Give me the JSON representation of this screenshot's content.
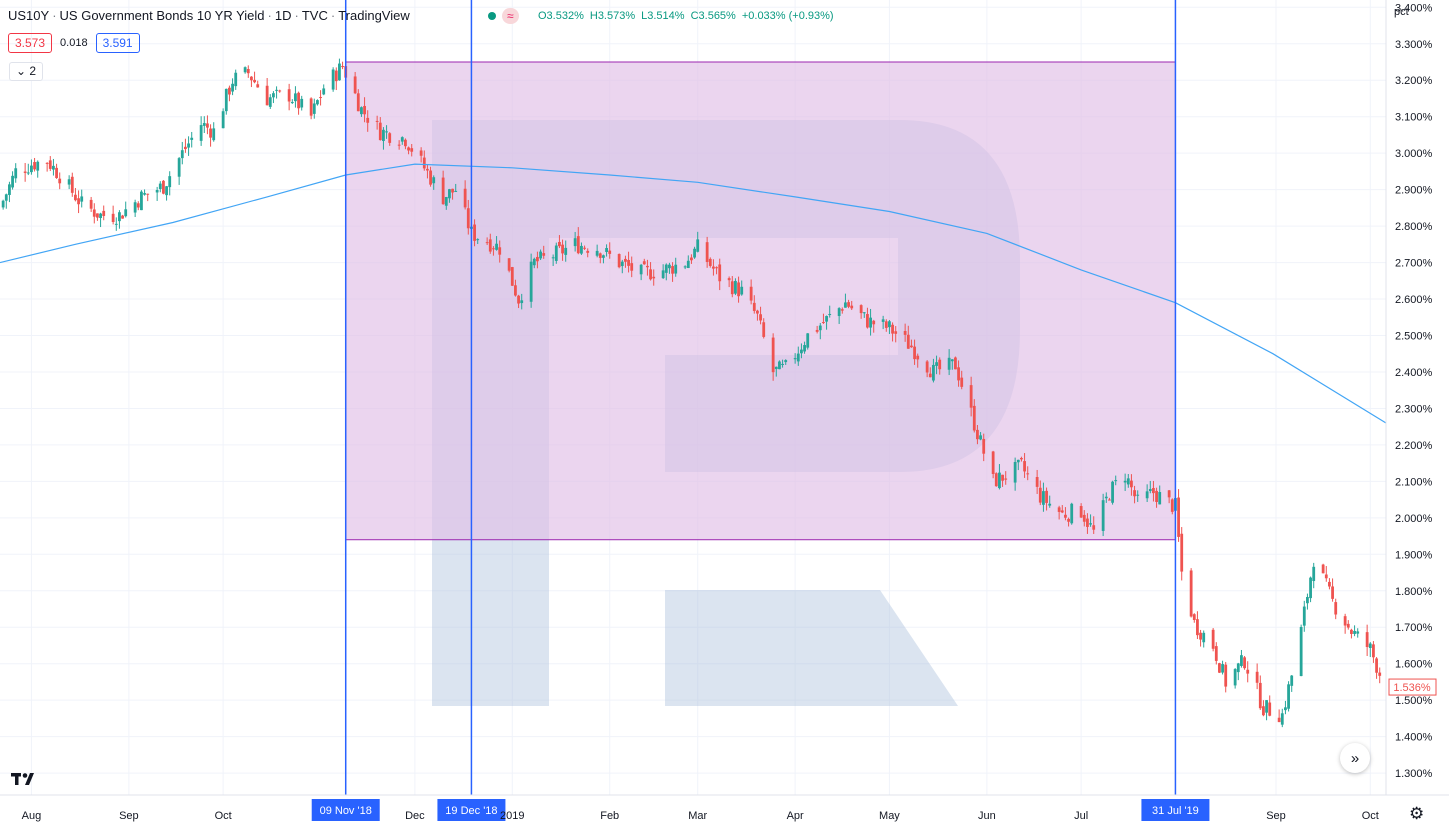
{
  "header": {
    "symbol": "US10Y",
    "name": "US Government Bonds 10 YR Yield",
    "interval": "1D",
    "exchange": "TVC",
    "source": "TradingView",
    "status_pill": "≈",
    "ohlc": {
      "open": "O3.532%",
      "high": "H3.573%",
      "low": "L3.514%",
      "close": "C3.565%",
      "change": "+0.033% (+0.93%)"
    },
    "sell_price": "3.573",
    "spread": "0.018",
    "buy_price": "3.591",
    "indicator_toggle": "⌄ 2"
  },
  "axis_unit": "pct",
  "colors": {
    "up": "#26a69a",
    "down": "#ef5350",
    "ma": "#42a5f5",
    "range_fill": "#e1bee7",
    "range_border": "#9c27b0",
    "vline": "#2962ff",
    "watermark": "#b0c4de"
  },
  "chart_data": {
    "type": "candlestick",
    "y_ticks": [
      "1.300%",
      "1.400%",
      "1.500%",
      "1.600%",
      "1.700%",
      "1.800%",
      "1.900%",
      "2.000%",
      "2.100%",
      "2.200%",
      "2.300%",
      "2.400%",
      "2.500%",
      "2.600%",
      "2.700%",
      "2.800%",
      "2.900%",
      "3.000%",
      "3.100%",
      "3.200%",
      "3.300%",
      "3.400%"
    ],
    "ylim": [
      1.24,
      3.42
    ],
    "x_start": "2018-07-22",
    "x_end": "2019-10-06",
    "x_ticks": [
      {
        "label": "Aug",
        "date": "2018-08-01"
      },
      {
        "label": "Sep",
        "date": "2018-09-01"
      },
      {
        "label": "Oct",
        "date": "2018-10-01"
      },
      {
        "label": "Dec",
        "date": "2018-12-01"
      },
      {
        "label": "2019",
        "date": "2019-01-01"
      },
      {
        "label": "Feb",
        "date": "2019-02-01"
      },
      {
        "label": "Mar",
        "date": "2019-03-01"
      },
      {
        "label": "Apr",
        "date": "2019-04-01"
      },
      {
        "label": "May",
        "date": "2019-05-01"
      },
      {
        "label": "Jun",
        "date": "2019-06-01"
      },
      {
        "label": "Jul",
        "date": "2019-07-01"
      },
      {
        "label": "Sep",
        "date": "2019-09-01"
      },
      {
        "label": "Oct",
        "date": "2019-10-01"
      }
    ],
    "close_path": [
      [
        "2018-07-22",
        2.85
      ],
      [
        "2018-07-27",
        2.95
      ],
      [
        "2018-08-01",
        2.97
      ],
      [
        "2018-08-06",
        2.98
      ],
      [
        "2018-08-10",
        2.94
      ],
      [
        "2018-08-17",
        2.86
      ],
      [
        "2018-08-23",
        2.83
      ],
      [
        "2018-08-29",
        2.83
      ],
      [
        "2018-09-05",
        2.88
      ],
      [
        "2018-09-12",
        2.91
      ],
      [
        "2018-09-18",
        3.0
      ],
      [
        "2018-09-24",
        3.08
      ],
      [
        "2018-09-28",
        3.06
      ],
      [
        "2018-10-04",
        3.2
      ],
      [
        "2018-10-09",
        3.22
      ],
      [
        "2018-10-15",
        3.15
      ],
      [
        "2018-10-22",
        3.16
      ],
      [
        "2018-10-29",
        3.1
      ],
      [
        "2018-11-02",
        3.18
      ],
      [
        "2018-11-08",
        3.24
      ],
      [
        "2018-11-14",
        3.12
      ],
      [
        "2018-11-20",
        3.06
      ],
      [
        "2018-11-28",
        3.04
      ],
      [
        "2018-12-04",
        2.96
      ],
      [
        "2018-12-10",
        2.88
      ],
      [
        "2018-12-14",
        2.9
      ],
      [
        "2018-12-19",
        2.78
      ],
      [
        "2018-12-24",
        2.76
      ],
      [
        "2018-12-28",
        2.74
      ],
      [
        "2019-01-03",
        2.6
      ],
      [
        "2019-01-08",
        2.7
      ],
      [
        "2019-01-14",
        2.72
      ],
      [
        "2019-01-21",
        2.75
      ],
      [
        "2019-01-28",
        2.74
      ],
      [
        "2019-02-04",
        2.7
      ],
      [
        "2019-02-11",
        2.67
      ],
      [
        "2019-02-18",
        2.68
      ],
      [
        "2019-02-25",
        2.7
      ],
      [
        "2019-03-01",
        2.74
      ],
      [
        "2019-03-08",
        2.66
      ],
      [
        "2019-03-15",
        2.62
      ],
      [
        "2019-03-20",
        2.55
      ],
      [
        "2019-03-25",
        2.4
      ],
      [
        "2019-03-29",
        2.41
      ],
      [
        "2019-04-05",
        2.5
      ],
      [
        "2019-04-12",
        2.55
      ],
      [
        "2019-04-17",
        2.59
      ],
      [
        "2019-04-24",
        2.54
      ],
      [
        "2019-05-01",
        2.52
      ],
      [
        "2019-05-08",
        2.47
      ],
      [
        "2019-05-15",
        2.4
      ],
      [
        "2019-05-22",
        2.42
      ],
      [
        "2019-05-28",
        2.26
      ],
      [
        "2019-06-03",
        2.1
      ],
      [
        "2019-06-08",
        2.12
      ],
      [
        "2019-06-12",
        2.14
      ],
      [
        "2019-06-18",
        2.06
      ],
      [
        "2019-06-25",
        2.01
      ],
      [
        "2019-07-01",
        2.02
      ],
      [
        "2019-07-05",
        1.96
      ],
      [
        "2019-07-10",
        2.07
      ],
      [
        "2019-07-15",
        2.12
      ],
      [
        "2019-07-19",
        2.04
      ],
      [
        "2019-07-24",
        2.07
      ],
      [
        "2019-07-31",
        2.03
      ],
      [
        "2019-08-02",
        1.85
      ],
      [
        "2019-08-06",
        1.71
      ],
      [
        "2019-08-12",
        1.65
      ],
      [
        "2019-08-16",
        1.55
      ],
      [
        "2019-08-22",
        1.61
      ],
      [
        "2019-08-28",
        1.48
      ],
      [
        "2019-09-03",
        1.46
      ],
      [
        "2019-09-08",
        1.64
      ],
      [
        "2019-09-13",
        1.89
      ],
      [
        "2019-09-19",
        1.77
      ],
      [
        "2019-09-25",
        1.69
      ],
      [
        "2019-10-01",
        1.64
      ],
      [
        "2019-10-06",
        1.53
      ]
    ],
    "moving_average": [
      [
        "2018-07-22",
        2.7
      ],
      [
        "2018-08-15",
        2.75
      ],
      [
        "2018-09-15",
        2.81
      ],
      [
        "2018-10-15",
        2.88
      ],
      [
        "2018-11-09",
        2.94
      ],
      [
        "2018-12-01",
        2.97
      ],
      [
        "2019-01-01",
        2.96
      ],
      [
        "2019-02-01",
        2.94
      ],
      [
        "2019-03-01",
        2.92
      ],
      [
        "2019-04-01",
        2.88
      ],
      [
        "2019-05-01",
        2.84
      ],
      [
        "2019-06-01",
        2.78
      ],
      [
        "2019-07-01",
        2.68
      ],
      [
        "2019-07-31",
        2.59
      ],
      [
        "2019-08-31",
        2.45
      ],
      [
        "2019-10-06",
        2.26
      ]
    ],
    "last_price": 1.536,
    "last_price_label": "1.536%",
    "range_box": {
      "from": "2018-11-09",
      "to": "2019-07-31",
      "low": 1.94,
      "high": 3.25
    },
    "vertical_lines": [
      {
        "date": "2018-11-09",
        "label": "09 Nov '18"
      },
      {
        "date": "2018-12-19",
        "label": "19 Dec '18"
      },
      {
        "date": "2019-07-31",
        "label": "31 Jul '19"
      }
    ]
  },
  "scroll_button": "»",
  "settings_icon": "⚙"
}
